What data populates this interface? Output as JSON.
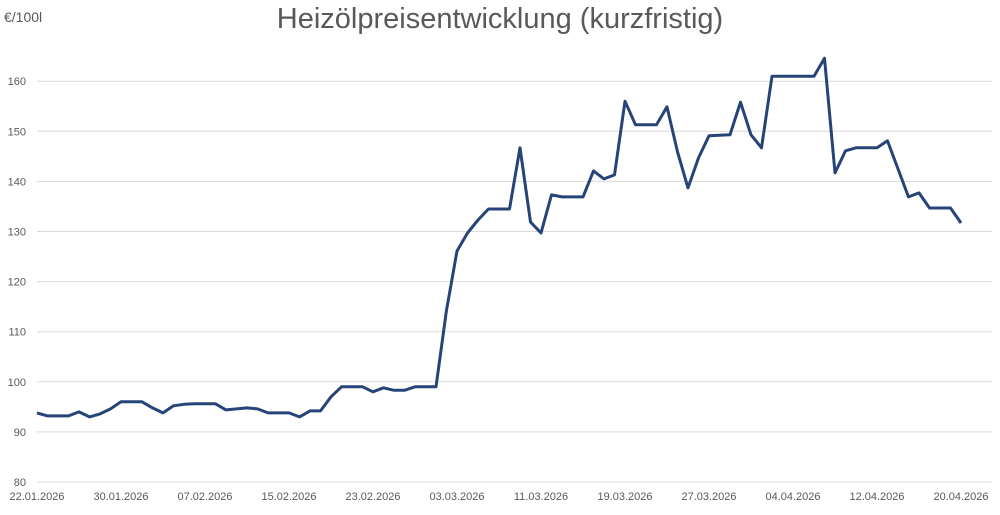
{
  "chart_data": {
    "type": "line",
    "title": "Heizölpreisentwicklung (kurzfristig)",
    "ylabel": "€/100l",
    "xlabel": "",
    "ylim": [
      80,
      165
    ],
    "yticks": [
      80,
      90,
      100,
      110,
      120,
      130,
      140,
      150,
      160
    ],
    "xticks": [
      "22.01.2026",
      "30.01.2026",
      "07.02.2026",
      "15.02.2026",
      "23.02.2026",
      "03.03.2026",
      "11.03.2026",
      "19.03.2026",
      "27.03.2026",
      "04.04.2026",
      "12.04.2026",
      "20.04.2026"
    ],
    "grid": "horizontal",
    "line_color": "#264478",
    "x": [
      "22.01.2026",
      "23.01.2026",
      "24.01.2026",
      "25.01.2026",
      "26.01.2026",
      "27.01.2026",
      "28.01.2026",
      "29.01.2026",
      "30.01.2026",
      "31.01.2026",
      "01.02.2026",
      "02.02.2026",
      "03.02.2026",
      "04.02.2026",
      "05.02.2026",
      "06.02.2026",
      "07.02.2026",
      "08.02.2026",
      "09.02.2026",
      "10.02.2026",
      "11.02.2026",
      "12.02.2026",
      "13.02.2026",
      "14.02.2026",
      "15.02.2026",
      "16.02.2026",
      "17.02.2026",
      "18.02.2026",
      "19.02.2026",
      "20.02.2026",
      "21.02.2026",
      "22.02.2026",
      "23.02.2026",
      "24.02.2026",
      "25.02.2026",
      "26.02.2026",
      "27.02.2026",
      "28.02.2026",
      "01.03.2026",
      "02.03.2026",
      "03.03.2026",
      "04.03.2026",
      "05.03.2026",
      "06.03.2026",
      "07.03.2026",
      "08.03.2026",
      "09.03.2026",
      "10.03.2026",
      "11.03.2026",
      "12.03.2026",
      "13.03.2026",
      "14.03.2026",
      "15.03.2026",
      "16.03.2026",
      "17.03.2026",
      "18.03.2026",
      "19.03.2026",
      "20.03.2026",
      "21.03.2026",
      "22.03.2026",
      "23.03.2026",
      "24.03.2026",
      "25.03.2026",
      "26.03.2026",
      "27.03.2026",
      "28.03.2026",
      "29.03.2026",
      "30.03.2026",
      "31.03.2026",
      "01.04.2026",
      "02.04.2026",
      "03.04.2026",
      "04.04.2026",
      "05.04.2026",
      "06.04.2026",
      "07.04.2026",
      "08.04.2026",
      "09.04.2026",
      "10.04.2026",
      "11.04.2026",
      "12.04.2026",
      "13.04.2026",
      "14.04.2026",
      "15.04.2026",
      "16.04.2026",
      "17.04.2026",
      "18.04.2026",
      "19.04.2026",
      "20.04.2026"
    ],
    "series": [
      {
        "values": [
          93.8,
          93.2,
          93.2,
          93.2,
          94,
          93,
          93.6,
          94.6,
          96,
          96,
          96,
          94.8,
          93.8,
          95.2,
          95.5,
          95.6,
          95.6,
          95.6,
          94.4,
          94.6,
          94.8,
          94.6,
          93.8,
          93.8,
          93.8,
          93,
          94.2,
          94.2,
          97,
          99,
          99,
          99,
          98,
          98.8,
          98.3,
          98.3,
          99,
          99,
          99,
          114.3,
          126.1,
          129.7,
          132.3,
          134.5,
          134.5,
          134.5,
          146.7,
          131.9,
          129.7,
          137.3,
          136.9,
          136.9,
          136.9,
          142.1,
          140.5,
          141.3,
          156,
          151.3,
          151.3,
          151.3,
          154.9,
          145.9,
          138.7,
          144.7,
          149.1,
          149.2,
          149.3,
          155.8,
          149.3,
          146.7,
          161,
          161,
          161,
          161,
          161,
          164.6,
          141.7,
          146.1,
          146.7,
          146.7,
          146.7,
          148.1,
          142.5,
          136.9,
          137.7,
          134.7,
          134.7,
          134.7,
          131.7
        ]
      }
    ]
  }
}
